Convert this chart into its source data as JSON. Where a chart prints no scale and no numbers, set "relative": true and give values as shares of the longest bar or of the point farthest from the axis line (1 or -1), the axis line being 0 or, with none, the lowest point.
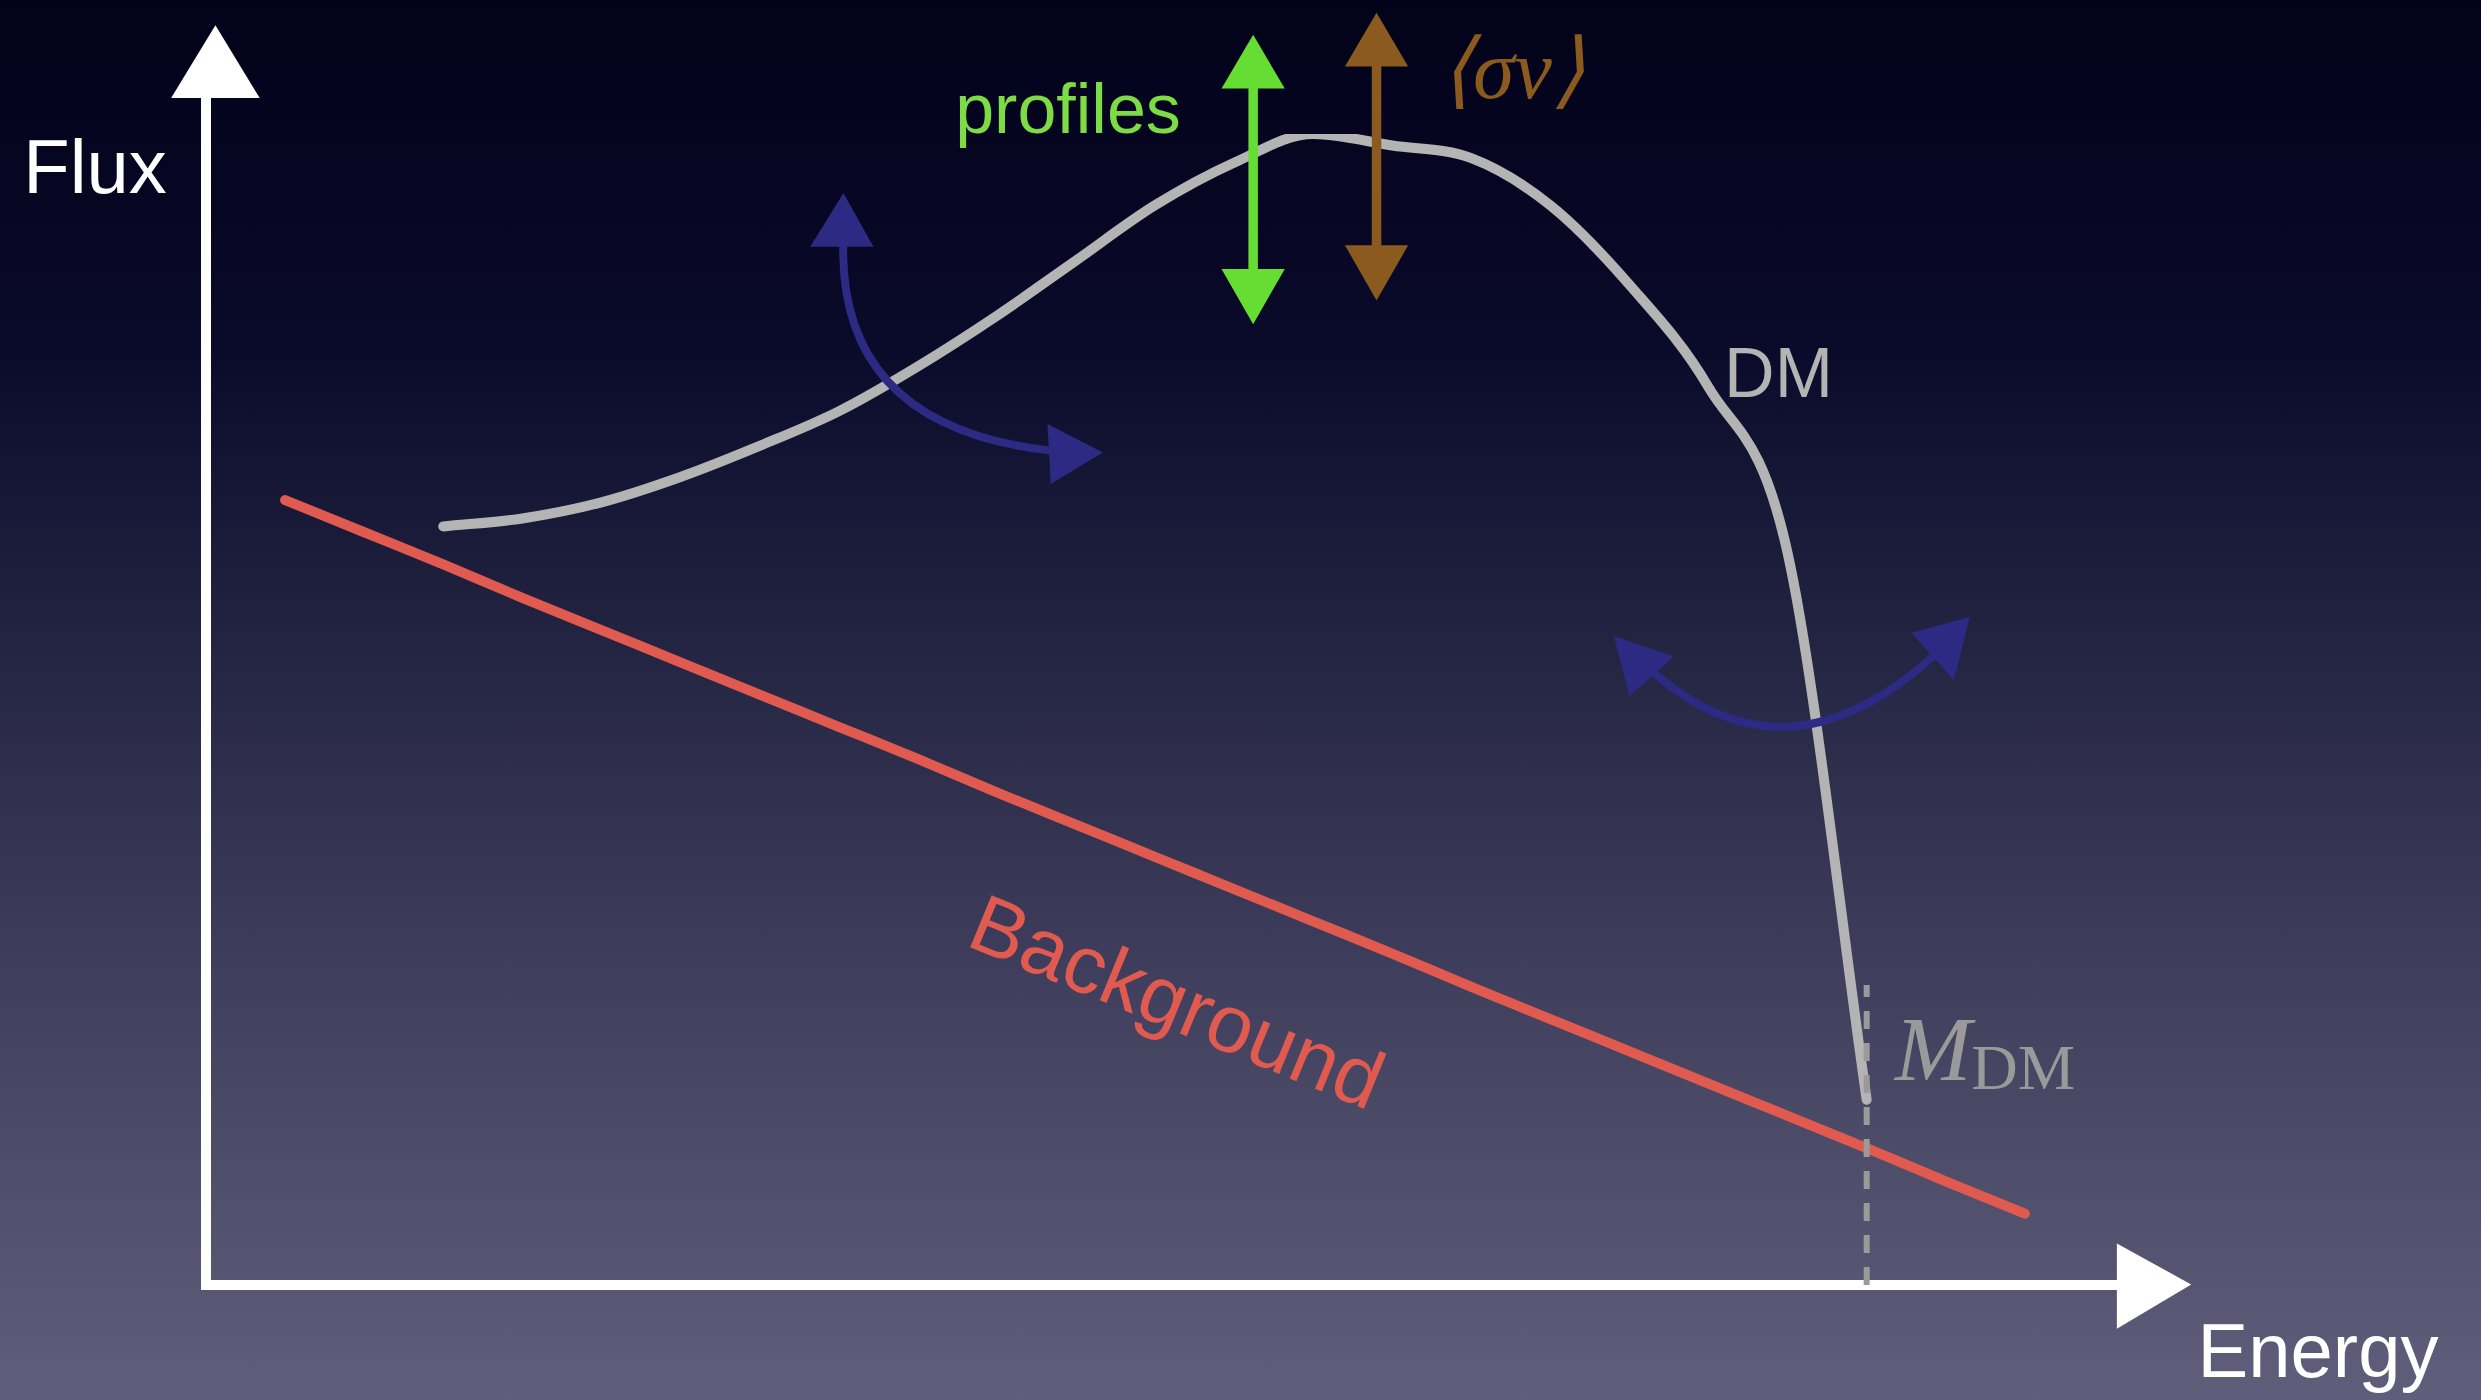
{
  "chart_data": {
    "type": "line",
    "relative": true,
    "xlabel": "Energy",
    "ylabel": "Flux",
    "categories": [
      null,
      null,
      null,
      null,
      null,
      null,
      null,
      null,
      null,
      null,
      null,
      null,
      null,
      null,
      null,
      null,
      null,
      null,
      null,
      null,
      null,
      null,
      null,
      null,
      null,
      null
    ],
    "series": [
      {
        "name": "DM",
        "color": "#b4b4b4",
        "values": [
          null,
          null,
          null,
          0.659,
          0.666,
          0.68,
          0.702,
          0.729,
          0.759,
          0.798,
          0.842,
          0.89,
          0.938,
          0.975,
          1.0,
          0.99,
          0.979,
          0.938,
          0.869,
          0.78,
          0.636,
          0.161,
          null,
          null,
          null,
          null
        ]
      },
      {
        "name": "Background",
        "color": "#e05a50",
        "values": [
          null,
          0.682,
          0.654,
          0.626,
          0.597,
          0.569,
          0.541,
          0.513,
          0.485,
          0.457,
          0.428,
          0.4,
          0.372,
          0.344,
          0.316,
          0.288,
          0.259,
          0.231,
          0.203,
          0.175,
          0.147,
          0.119,
          0.09,
          0.062,
          null,
          null
        ]
      }
    ],
    "annotations": [
      "profiles",
      "⟨σv⟩",
      "M$_{DM}$"
    ],
    "legend": false,
    "marker": "none",
    "line_style": "solid"
  }
}
